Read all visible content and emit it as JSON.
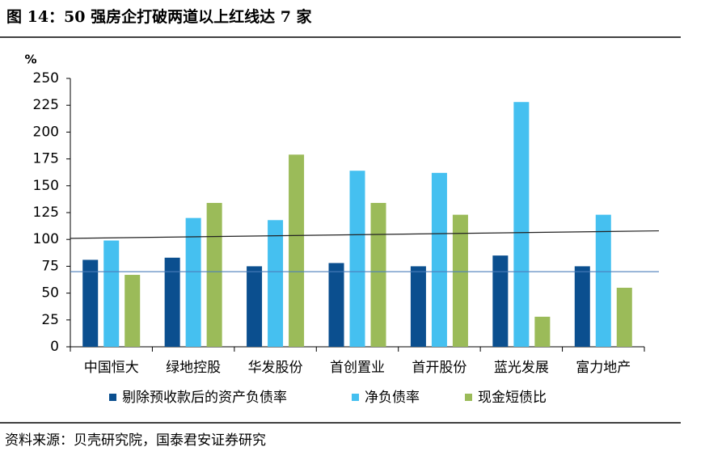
{
  "title": "图 14：50 强房企打破两道以上红线达 7 家",
  "source": "资料来源：贝壳研究院，国泰君安证券研究",
  "chart_data": {
    "type": "bar",
    "y_unit": "%",
    "categories": [
      "中国恒大",
      "绿地控股",
      "华发股份",
      "首创置业",
      "首开股份",
      "蓝光发展",
      "富力地产"
    ],
    "series": [
      {
        "name": "剔除预收款后的资产负债率",
        "color": "#0b4f8f",
        "values": [
          81,
          83,
          75,
          78,
          75,
          85,
          75
        ]
      },
      {
        "name": "净负债率",
        "color": "#45c0f0",
        "values": [
          99,
          120,
          118,
          164,
          162,
          228,
          123
        ]
      },
      {
        "name": "现金短债比",
        "color": "#9bbb59",
        "values": [
          67,
          134,
          179,
          134,
          123,
          28,
          55
        ]
      }
    ],
    "reference_lines": [
      {
        "color": "#4a7ebb",
        "values": [
          70,
          70
        ]
      },
      {
        "color": "#222222",
        "values": [
          101,
          108
        ]
      }
    ],
    "ylim": [
      0,
      250
    ],
    "yticks": [
      0,
      25,
      50,
      75,
      100,
      125,
      150,
      175,
      200,
      225,
      250
    ]
  }
}
